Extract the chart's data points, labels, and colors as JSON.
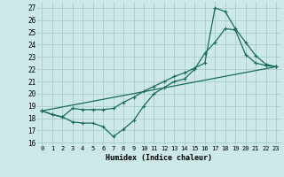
{
  "xlabel": "Humidex (Indice chaleur)",
  "bg_color": "#cce8e8",
  "grid_color": "#aacccc",
  "line_color": "#1a6b5a",
  "xlim": [
    -0.5,
    23.5
  ],
  "ylim": [
    15.8,
    27.5
  ],
  "yticks": [
    16,
    17,
    18,
    19,
    20,
    21,
    22,
    23,
    24,
    25,
    26,
    27
  ],
  "xticks": [
    0,
    1,
    2,
    3,
    4,
    5,
    6,
    7,
    8,
    9,
    10,
    11,
    12,
    13,
    14,
    15,
    16,
    17,
    18,
    19,
    20,
    21,
    22,
    23
  ],
  "line1_x": [
    0,
    1,
    2,
    3,
    4,
    5,
    6,
    7,
    8,
    9,
    10,
    11,
    12,
    13,
    14,
    15,
    16,
    17,
    18,
    19,
    20,
    21,
    22,
    23
  ],
  "line1_y": [
    18.6,
    18.3,
    18.1,
    17.7,
    17.6,
    17.6,
    17.3,
    16.5,
    17.1,
    17.8,
    19.0,
    20.0,
    20.5,
    21.0,
    21.2,
    22.0,
    23.3,
    24.2,
    25.3,
    25.2,
    23.2,
    22.5,
    22.3,
    22.2
  ],
  "line2_x": [
    0,
    1,
    2,
    3,
    4,
    5,
    6,
    7,
    8,
    9,
    10,
    11,
    12,
    13,
    14,
    15,
    16,
    17,
    18,
    19,
    20,
    21,
    22,
    23
  ],
  "line2_y": [
    18.6,
    18.3,
    18.1,
    18.8,
    18.7,
    18.7,
    18.7,
    18.8,
    19.3,
    19.7,
    20.2,
    20.6,
    21.0,
    21.4,
    21.7,
    22.1,
    22.5,
    27.0,
    26.7,
    25.3,
    24.2,
    23.1,
    22.4,
    22.2
  ],
  "line3_x": [
    0,
    23
  ],
  "line3_y": [
    18.6,
    22.2
  ]
}
